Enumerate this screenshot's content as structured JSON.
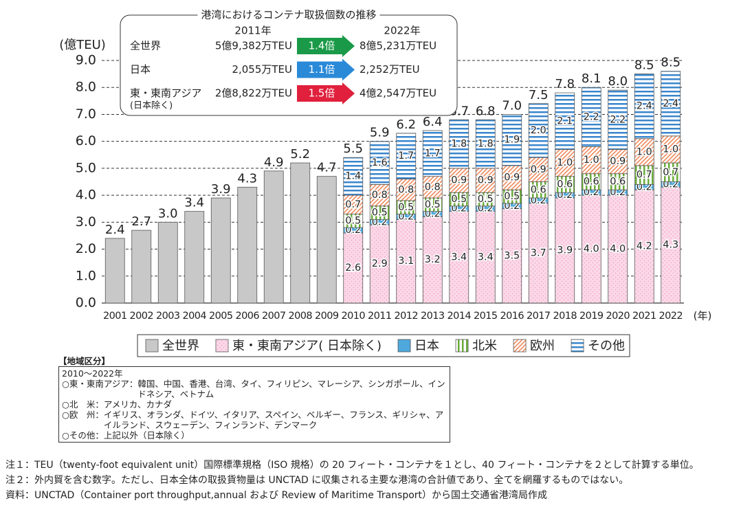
{
  "chart_data": {
    "type": "bar",
    "stacked": true,
    "y_label": "(億TEU)",
    "x_label": "(年)",
    "categories": [
      "2001",
      "2002",
      "2003",
      "2004",
      "2005",
      "2006",
      "2007",
      "2008",
      "2009",
      "2010",
      "2011",
      "2012",
      "2013",
      "2014",
      "2015",
      "2016",
      "2017",
      "2018",
      "2019",
      "2020",
      "2021",
      "2022"
    ],
    "series": [
      {
        "name": "全世界",
        "color": "#c8c8c8",
        "pattern": "solid",
        "label_position": "top",
        "values": [
          2.4,
          2.7,
          3.0,
          3.4,
          3.9,
          4.3,
          4.9,
          5.2,
          4.7,
          null,
          null,
          null,
          null,
          null,
          null,
          null,
          null,
          null,
          null,
          null,
          null,
          null
        ],
        "value_labels": [
          "2.4",
          "2.7",
          "3.0",
          "3.4",
          "3.9",
          "4.3",
          "4.9",
          "5.2",
          "4.7",
          null,
          null,
          null,
          null,
          null,
          null,
          null,
          null,
          null,
          null,
          null,
          null,
          null
        ]
      },
      {
        "name": "東・東南アジア( 日本除く)",
        "color": "#f4a6c8",
        "pattern": "dots",
        "label_position": "inside",
        "values": [
          null,
          null,
          null,
          null,
          null,
          null,
          null,
          null,
          null,
          2.6,
          2.9,
          3.1,
          3.2,
          3.4,
          3.4,
          3.5,
          3.7,
          3.9,
          4.0,
          4.0,
          4.2,
          4.3
        ],
        "value_labels": [
          null,
          null,
          null,
          null,
          null,
          null,
          null,
          null,
          null,
          "2.6",
          "2.9",
          "3.1",
          "3.2",
          "3.4",
          "3.4",
          "3.5",
          "3.7",
          "3.9",
          "4.0",
          "4.0",
          "4.2",
          "4.3"
        ]
      },
      {
        "name": "日本",
        "color": "#4fa8dc",
        "pattern": "solid",
        "label_position": "inside",
        "values": [
          null,
          null,
          null,
          null,
          null,
          null,
          null,
          null,
          null,
          0.2,
          0.2,
          0.2,
          0.2,
          0.2,
          0.2,
          0.2,
          0.2,
          0.2,
          0.2,
          0.2,
          0.2,
          0.2
        ],
        "value_labels": [
          null,
          null,
          null,
          null,
          null,
          null,
          null,
          null,
          null,
          "0.2",
          "0.2",
          "0.2",
          "0.2",
          "0.2",
          "0.2",
          "0.2",
          "0.2",
          "0.2",
          "0.2",
          "0.2",
          "0.2",
          "0.2"
        ]
      },
      {
        "name": "北米",
        "color": "#6aaa3a",
        "pattern": "vertical",
        "label_position": "inside",
        "values": [
          null,
          null,
          null,
          null,
          null,
          null,
          null,
          null,
          null,
          0.5,
          0.5,
          0.5,
          0.5,
          0.5,
          0.5,
          0.5,
          0.6,
          0.6,
          0.6,
          0.6,
          0.7,
          0.7
        ],
        "value_labels": [
          null,
          null,
          null,
          null,
          null,
          null,
          null,
          null,
          null,
          "0.5",
          "0.5",
          "0.5",
          "0.5",
          "0.5",
          "0.5",
          "0.5",
          "0.6",
          "0.6",
          "0.6",
          "0.6",
          "0.7",
          "0.7"
        ]
      },
      {
        "name": "欧州",
        "color": "#ee8a5c",
        "pattern": "diagonal",
        "label_position": "inside",
        "values": [
          null,
          null,
          null,
          null,
          null,
          null,
          null,
          null,
          null,
          0.7,
          0.8,
          0.8,
          0.8,
          0.9,
          0.9,
          0.9,
          0.9,
          1.0,
          1.0,
          0.9,
          1.0,
          1.0
        ],
        "value_labels": [
          null,
          null,
          null,
          null,
          null,
          null,
          null,
          null,
          null,
          "0.7",
          "0.8",
          "0.8",
          "0.8",
          "0.9",
          "0.9",
          "0.9",
          "0.9",
          "1.0",
          "1.0",
          "0.9",
          "1.0",
          "1.0"
        ]
      },
      {
        "name": "その他",
        "color": "#3a86cc",
        "pattern": "horizontal",
        "label_position": "inside",
        "values": [
          null,
          null,
          null,
          null,
          null,
          null,
          null,
          null,
          null,
          1.4,
          1.6,
          1.7,
          1.7,
          1.8,
          1.8,
          1.9,
          2.0,
          2.1,
          2.2,
          2.2,
          2.4,
          2.4
        ],
        "value_labels": [
          null,
          null,
          null,
          null,
          null,
          null,
          null,
          null,
          null,
          "1.4",
          "1.6",
          "1.7",
          "1.7",
          "1.8",
          "1.8",
          "1.9",
          "2.0",
          "2.1",
          "2.2",
          "2.2",
          "2.4",
          "2.4"
        ]
      }
    ],
    "totals": [
      null,
      null,
      null,
      null,
      null,
      null,
      null,
      null,
      null,
      5.5,
      5.9,
      6.2,
      6.4,
      6.7,
      6.8,
      7.0,
      7.5,
      7.8,
      8.1,
      8.0,
      8.5,
      8.5
    ],
    "total_labels": [
      null,
      null,
      null,
      null,
      null,
      null,
      null,
      null,
      null,
      "5.5",
      "5.9",
      "6.2",
      "6.4",
      "6.7",
      "6.8",
      "7.0",
      "7.5",
      "7.8",
      "8.1",
      "8.0",
      "8.5",
      "8.5"
    ],
    "ylim": [
      0,
      9
    ],
    "yticks": [
      {
        "value": 0,
        "label": "0.0"
      },
      {
        "value": 1,
        "label": "1.0"
      },
      {
        "value": 2,
        "label": "2.0"
      },
      {
        "value": 3,
        "label": "3.0"
      },
      {
        "value": 4,
        "label": "4.0"
      },
      {
        "value": 5,
        "label": "5.0"
      },
      {
        "value": 6,
        "label": "6.0"
      },
      {
        "value": 7,
        "label": "7.0"
      },
      {
        "value": 8,
        "label": "8.0"
      },
      {
        "value": 9,
        "label": "9.0"
      }
    ],
    "grid": true,
    "grid_style": "dashed",
    "legend": "bottom"
  },
  "inset": {
    "title": "港湾におけるコンテナ取扱個数の推移",
    "headers": [
      "2011年",
      "2022年"
    ],
    "rows": [
      {
        "label": "全世界",
        "from": "5億9,382万TEU",
        "ratio": "1.4倍",
        "to": "8億5,231万TEU",
        "color": "#1a9a48"
      },
      {
        "label": "日本",
        "from": "2,055万TEU",
        "ratio": "1.1倍",
        "to": "2,252万TEU",
        "color": "#2a8ad8"
      },
      {
        "label": "東・東南アジア",
        "sublabel": "(日本除く)",
        "from": "2億8,822万TEU",
        "ratio": "1.5倍",
        "to": "4億2,547万TEU",
        "color": "#e0203c"
      }
    ]
  },
  "regions": {
    "title": "【地域区分】",
    "period": "2010〜2022年",
    "items": [
      {
        "label": "○東・東南アジア：",
        "text": "韓国、中国、香港、台湾、タイ、フィリピン、マレーシア、シンガポール、インドネシア、ベトナム"
      },
      {
        "label": "○北　米：",
        "text": "アメリカ、カナダ"
      },
      {
        "label": "○欧　州：",
        "text": "イギリス、オランダ、ドイツ、イタリア、スペイン、ベルギー、フランス、ギリシャ、アイルランド、スウェーデン、フィンランド、デンマーク"
      },
      {
        "label": "○その他：",
        "text": "上記以外（日本除く）"
      }
    ]
  },
  "notes": [
    {
      "label": "注１：",
      "text": "TEU（twenty-foot equivalent unit）国際標準規格（ISO 規格）の 20 フィート・コンテナを１とし、40 フィート・コンテナを２として計算する単位。"
    },
    {
      "label": "注２：",
      "text": "外内貿を含む数字。ただし、日本全体の取扱貨物量は UNCTAD に収集される主要な港湾の合計値であり、全てを網羅するものではない。"
    },
    {
      "label": "資料：",
      "text": "UNCTAD（Container port throughput,annual および Review of Maritime Transport）から国土交通省港湾局作成"
    }
  ]
}
